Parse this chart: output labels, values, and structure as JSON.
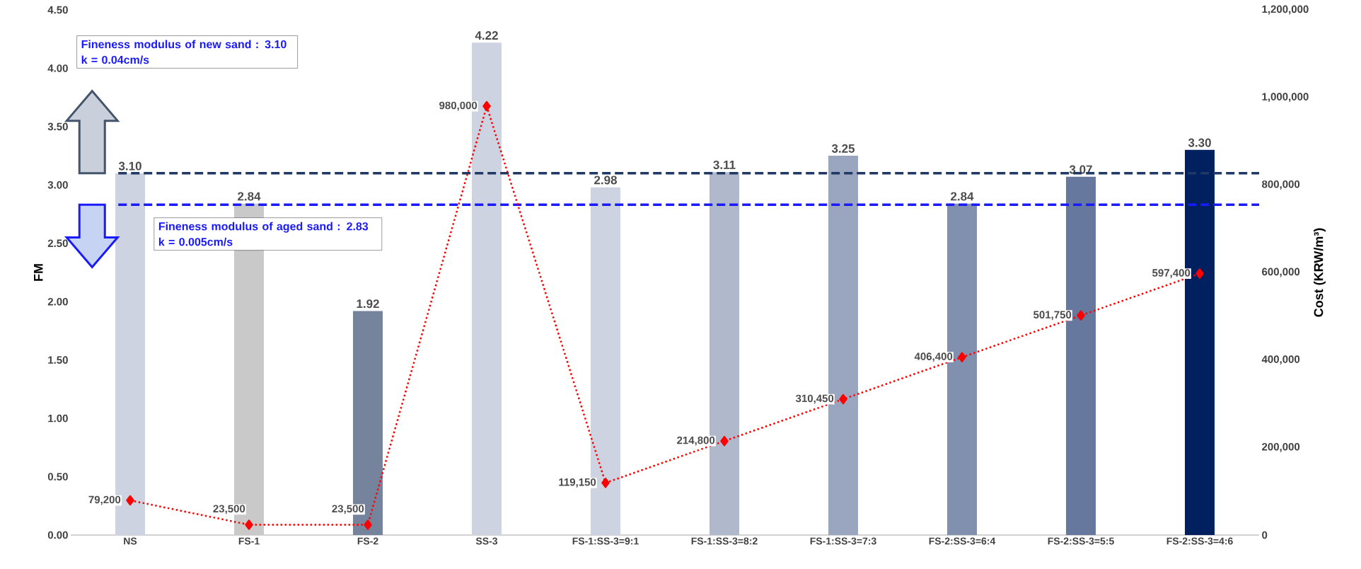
{
  "chart_data": {
    "type": "bar",
    "categories": [
      "NS",
      "FS-1",
      "FS-2",
      "SS-3",
      "FS-1:SS-3=9:1",
      "FS-1:SS-3=8:2",
      "FS-1:SS-3=7:3",
      "FS-2:SS-3=6:4",
      "FS-2:SS-3=5:5",
      "FS-2:SS-3=4:6"
    ],
    "ylabel": "FM",
    "y2label": "Cost (KRW/m³)",
    "series": [
      {
        "colors": [
          "#cdd3e0",
          "#c9c9c9",
          "#75849c",
          "#cdd3e0",
          "#cdd3e0",
          "#b0b9cc",
          "#9aa6bf",
          "#8290b0",
          "#66789e",
          "#002060"
        ],
        "values": [
          3.1,
          2.84,
          1.92,
          4.22,
          2.98,
          3.11,
          3.25,
          2.84,
          3.07,
          3.3
        ],
        "value_labels": [
          "3.10",
          "2.84",
          "1.92",
          "4.22",
          "2.98",
          "3.11",
          "3.25",
          "2.84",
          "3.07",
          "3.30"
        ]
      },
      {
        "type": "line",
        "axis": "y2",
        "color": "#ff0000",
        "marker": "diamond",
        "line_style": "dotted",
        "values": [
          79200,
          23500,
          23500,
          980000,
          119150,
          214800,
          310450,
          406400,
          501750,
          597400
        ],
        "value_labels": [
          "79,200",
          "23,500",
          "23,500",
          "980,000",
          "119,150",
          "214,800",
          "310,450",
          "406,400",
          "501,750",
          "597,400"
        ]
      }
    ],
    "ylim": [
      0,
      4.5
    ],
    "yticks": [
      {
        "value": 0,
        "label": "0.00"
      },
      {
        "value": 0.5,
        "label": "0.50"
      },
      {
        "value": 1,
        "label": "1.00"
      },
      {
        "value": 1.5,
        "label": "1.50"
      },
      {
        "value": 2,
        "label": "2.00"
      },
      {
        "value": 2.5,
        "label": "2.50"
      },
      {
        "value": 3,
        "label": "3.00"
      },
      {
        "value": 3.5,
        "label": "3.50"
      },
      {
        "value": 4,
        "label": "4.00"
      },
      {
        "value": 4.5,
        "label": "4.50"
      }
    ],
    "y2lim": [
      0,
      1200000
    ],
    "y2ticks": [
      0,
      {
        "value": 200000,
        "label": "200,000"
      },
      {
        "value": 400000,
        "label": "400,000"
      },
      {
        "value": 600000,
        "label": "600,000"
      },
      {
        "value": 800000,
        "label": "800,000"
      },
      {
        "value": 1000000,
        "label": "1,000,000"
      },
      {
        "value": 1200000,
        "label": "1,200,000"
      }
    ],
    "ref_lines": [
      {
        "axis": "y",
        "value": 3.1,
        "color": "#1f3864",
        "line_style": "dashed"
      },
      {
        "axis": "y",
        "value": 2.83,
        "color": "#1a1aff",
        "line_style": "dashed"
      }
    ],
    "annotations": [
      "Fineness modulus of new sand : 3.10",
      "k = 0.04cm/s",
      "Fineness modulus of aged sand : 2.83",
      "k = 0.005cm/s"
    ]
  }
}
